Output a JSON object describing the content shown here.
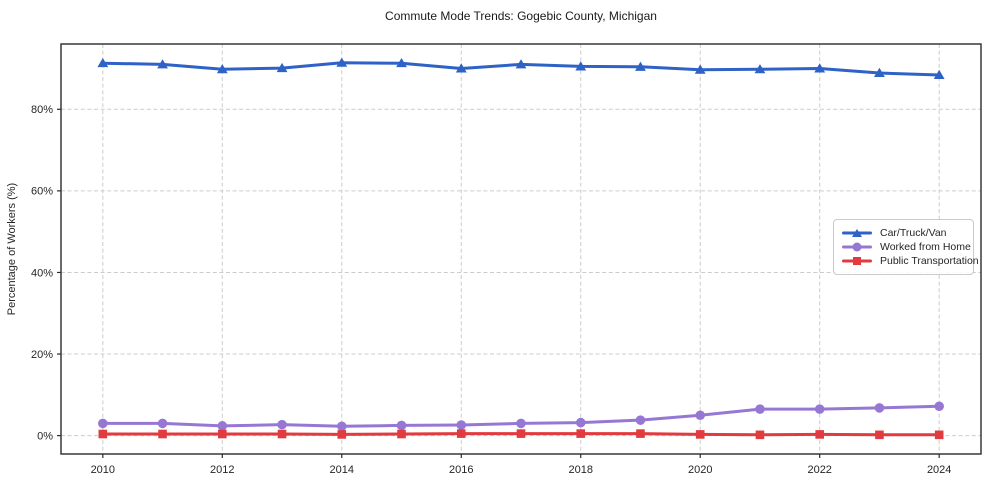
{
  "title": "Commute Mode Trends: Gogebic County, Michigan",
  "chart_data": {
    "type": "line",
    "title": "Commute Mode Trends: Gogebic County, Michigan",
    "xlabel": "",
    "ylabel": "Percentage of Workers (%)",
    "x": [
      2010,
      2011,
      2012,
      2013,
      2014,
      2015,
      2016,
      2017,
      2018,
      2019,
      2020,
      2021,
      2022,
      2023,
      2024
    ],
    "xticks": [
      2010,
      2012,
      2014,
      2016,
      2018,
      2020,
      2022,
      2024
    ],
    "xtick_labels": [
      "2010",
      "2012",
      "2014",
      "2016",
      "2018",
      "2020",
      "2022",
      "2024"
    ],
    "yticks": [
      0,
      20,
      40,
      60,
      80
    ],
    "ytick_labels": [
      "0%",
      "20%",
      "40%",
      "60%",
      "80%"
    ],
    "xlim": [
      2009.3,
      2024.7
    ],
    "ylim": [
      -4.5,
      96
    ],
    "grid": true,
    "grid_style": "dashed",
    "legend_position": "center right",
    "series": [
      {
        "name": "Car/Truck/Van",
        "marker": "triangle",
        "color": "#2e62c6",
        "values": [
          91.3,
          91.0,
          89.8,
          90.1,
          91.4,
          91.3,
          90.0,
          91.0,
          90.5,
          90.4,
          89.7,
          89.8,
          90.0,
          88.9,
          88.4
        ]
      },
      {
        "name": "Worked from Home",
        "marker": "circle",
        "color": "#9678d4",
        "values": [
          3.0,
          3.0,
          2.4,
          2.7,
          2.3,
          2.5,
          2.6,
          3.0,
          3.2,
          3.8,
          5.0,
          6.5,
          6.5,
          6.8,
          7.2
        ]
      },
      {
        "name": "Public Transportation",
        "marker": "square",
        "color": "#e23b3f",
        "values": [
          0.4,
          0.4,
          0.4,
          0.4,
          0.3,
          0.4,
          0.5,
          0.5,
          0.5,
          0.5,
          0.3,
          0.2,
          0.3,
          0.2,
          0.2
        ]
      }
    ],
    "colors": {
      "grid": "#cccccc",
      "spine": "#2b2b2b",
      "text": "#262626"
    }
  }
}
